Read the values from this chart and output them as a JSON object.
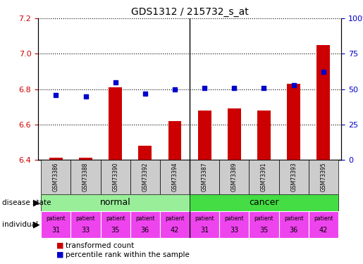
{
  "title": "GDS1312 / 215732_s_at",
  "samples": [
    "GSM73386",
    "GSM73388",
    "GSM73390",
    "GSM73392",
    "GSM73394",
    "GSM73387",
    "GSM73389",
    "GSM73391",
    "GSM73393",
    "GSM73395"
  ],
  "transformed_count": [
    6.41,
    6.41,
    6.81,
    6.48,
    6.62,
    6.68,
    6.69,
    6.68,
    6.83,
    7.05
  ],
  "percentile_rank": [
    46,
    45,
    55,
    47,
    50,
    51,
    51,
    51,
    53,
    62
  ],
  "ylim_left": [
    6.4,
    7.2
  ],
  "ylim_right": [
    0,
    100
  ],
  "yticks_left": [
    6.4,
    6.6,
    6.8,
    7.0,
    7.2
  ],
  "yticks_right": [
    0,
    25,
    50,
    75,
    100
  ],
  "ytick_labels_right": [
    "0",
    "25",
    "50",
    "75",
    "100%"
  ],
  "individual": [
    31,
    33,
    35,
    36,
    42,
    31,
    33,
    35,
    36,
    42
  ],
  "bar_color": "#cc0000",
  "dot_color": "#0000cc",
  "normal_color": "#99ee99",
  "cancer_color": "#44dd44",
  "patient_color": "#ee44ee",
  "sample_bg_color": "#cccccc",
  "left_tick_color": "#cc0000",
  "right_tick_color": "#0000cc",
  "bar_width": 0.45
}
